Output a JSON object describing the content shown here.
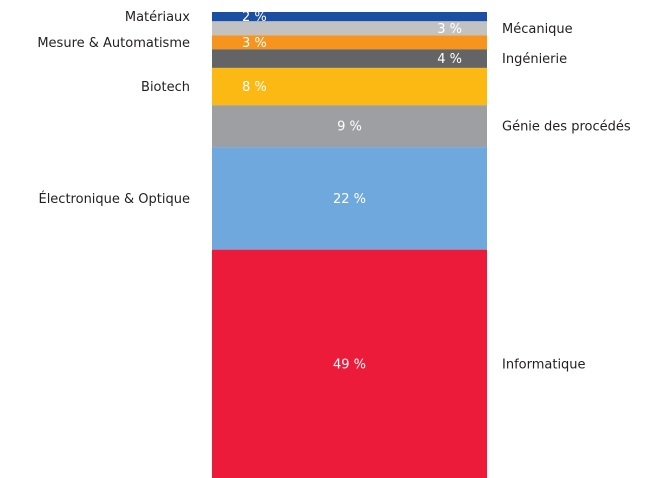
{
  "chart_data": {
    "type": "stacked-bar",
    "ylim": [
      0,
      100
    ],
    "series": [
      {
        "name": "Matériaux",
        "color": "#1a4fa3",
        "values": [
          2
        ],
        "value_labels": [
          "2 %"
        ]
      },
      {
        "name": "Mécanique",
        "color": "#c2c2c2",
        "values": [
          3
        ],
        "value_labels": [
          "3 %"
        ]
      },
      {
        "name": "Mesure & Automatisme",
        "color": "#f7941d",
        "values": [
          3
        ],
        "value_labels": [
          "3 %"
        ]
      },
      {
        "name": "Ingénierie",
        "color": "#636466",
        "values": [
          4
        ],
        "value_labels": [
          "4 %"
        ]
      },
      {
        "name": "Biotech",
        "color": "#fdb913",
        "values": [
          8
        ],
        "value_labels": [
          "8 %"
        ]
      },
      {
        "name": "Génie des procédés",
        "color": "#9d9fa2",
        "values": [
          9
        ],
        "value_labels": [
          "9 %"
        ]
      },
      {
        "name": "Électronique & Optique",
        "color": "#6fa8dc",
        "values": [
          22
        ],
        "value_labels": [
          "22 %"
        ]
      },
      {
        "name": "Informatique",
        "color": "#ed1b3a",
        "values": [
          49
        ],
        "value_labels": [
          "49 %"
        ]
      }
    ]
  }
}
